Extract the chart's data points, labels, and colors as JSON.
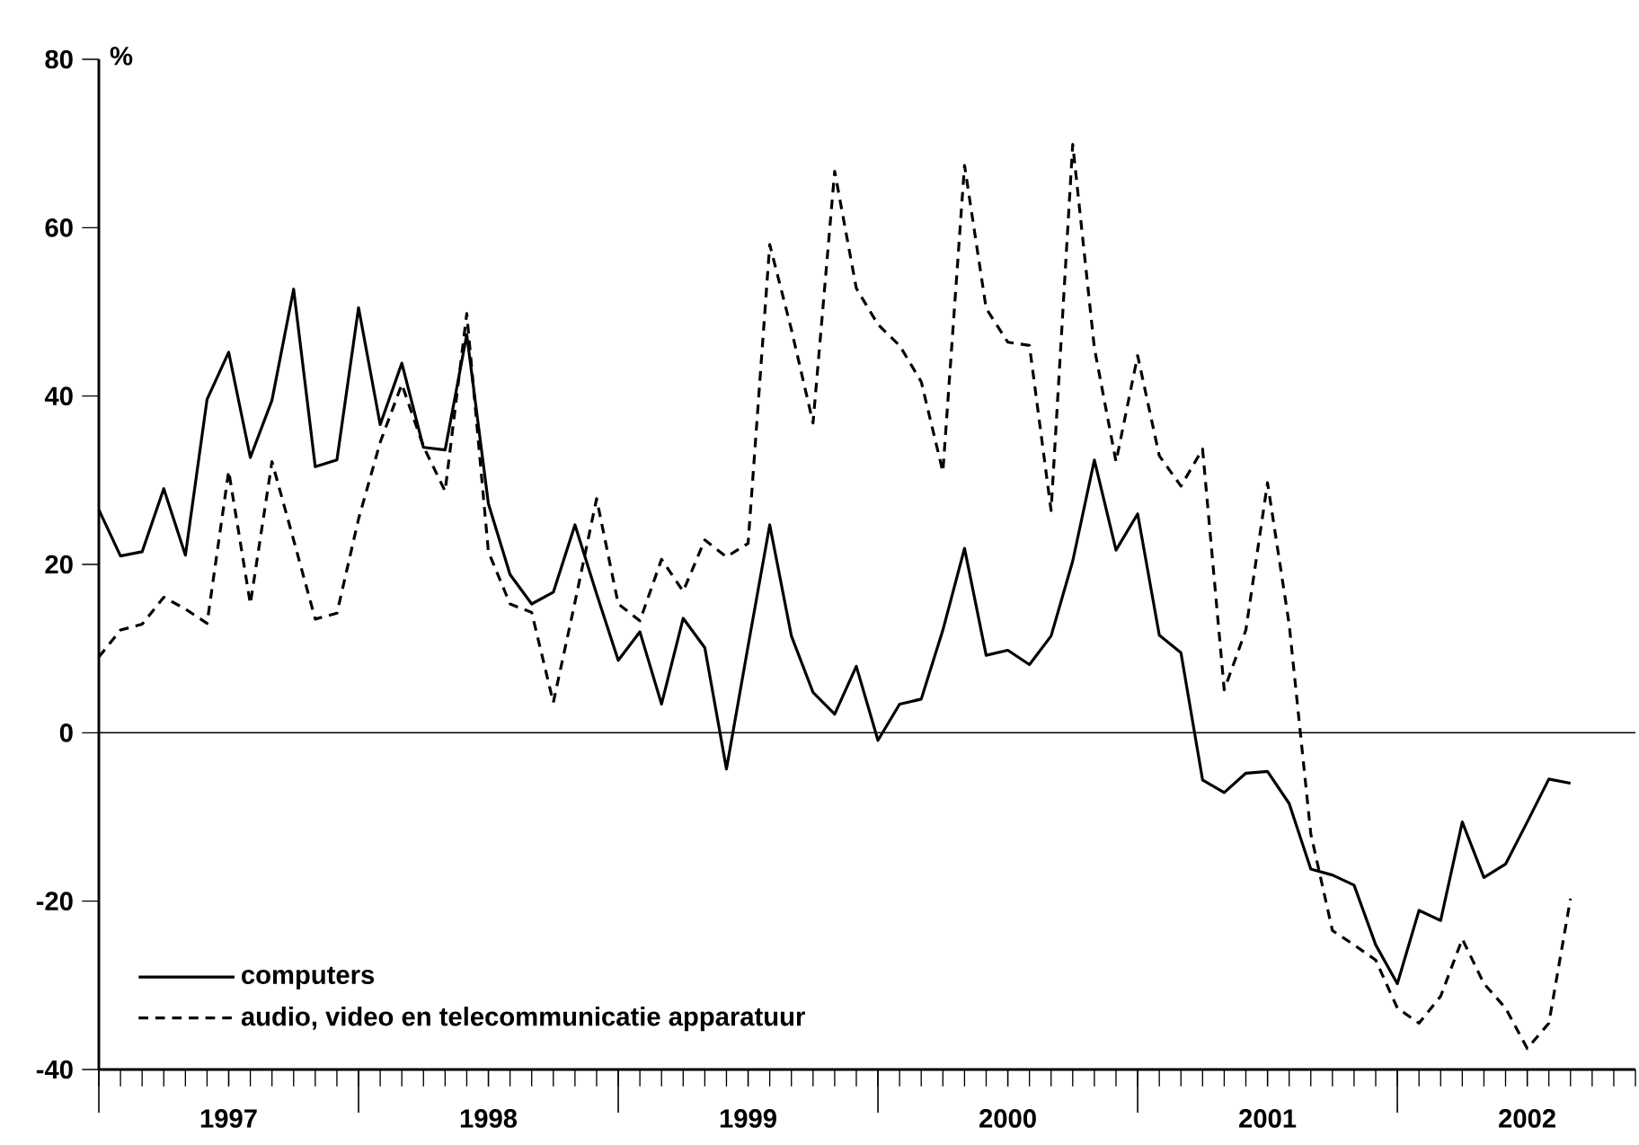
{
  "chart_data": {
    "type": "line",
    "ylabel": "%",
    "x": [
      "1997-01",
      "1997-02",
      "1997-03",
      "1997-04",
      "1997-05",
      "1997-06",
      "1997-07",
      "1997-08",
      "1997-09",
      "1997-10",
      "1997-11",
      "1997-12",
      "1998-01",
      "1998-02",
      "1998-03",
      "1998-04",
      "1998-05",
      "1998-06",
      "1998-07",
      "1998-08",
      "1998-09",
      "1998-10",
      "1998-11",
      "1998-12",
      "1999-01",
      "1999-02",
      "1999-03",
      "1999-04",
      "1999-05",
      "1999-06",
      "1999-07",
      "1999-08",
      "1999-09",
      "1999-10",
      "1999-11",
      "1999-12",
      "2000-01",
      "2000-02",
      "2000-03",
      "2000-04",
      "2000-05",
      "2000-06",
      "2000-07",
      "2000-08",
      "2000-09",
      "2000-10",
      "2000-11",
      "2000-12",
      "2001-01",
      "2001-02",
      "2001-03",
      "2001-04",
      "2001-05",
      "2001-06",
      "2001-07",
      "2001-08",
      "2001-09",
      "2001-10",
      "2001-11",
      "2001-12",
      "2002-01",
      "2002-02",
      "2002-03",
      "2002-04",
      "2002-05",
      "2002-06",
      "2002-07",
      "2002-08",
      "2002-09"
    ],
    "series": [
      {
        "name": "computers",
        "color": "#000000",
        "line_style": "solid",
        "values": [
          26.5,
          21.0,
          21.5,
          29.0,
          21.1,
          39.6,
          45.2,
          32.7,
          39.5,
          52.7,
          31.6,
          32.4,
          50.5,
          36.6,
          43.9,
          33.9,
          33.6,
          47.3,
          27.2,
          18.8,
          15.3,
          16.7,
          24.7,
          16.5,
          8.6,
          12.0,
          3.4,
          13.6,
          10.1,
          -4.3,
          10.3,
          24.7,
          11.5,
          4.8,
          2.2,
          7.9,
          -0.9,
          3.4,
          4.0,
          12.2,
          21.9,
          9.2,
          9.8,
          8.1,
          11.5,
          20.4,
          32.4,
          21.7,
          26.0,
          11.6,
          9.5,
          -5.6,
          -7.1,
          -4.8,
          -4.6,
          -8.4,
          -16.2,
          -16.9,
          -18.1,
          -25.2,
          -29.8,
          -21.1,
          -22.3,
          -10.6,
          -17.2,
          -15.6,
          -10.6,
          -5.5,
          -6.0
        ]
      },
      {
        "name": "audio, video en telecommunicatie apparatuur",
        "color": "#000000",
        "line_style": "dashed",
        "values": [
          9.0,
          12.2,
          12.9,
          16.1,
          14.7,
          13.0,
          31.1,
          15.3,
          32.2,
          22.9,
          13.5,
          14.2,
          25.4,
          34.5,
          41.4,
          34.0,
          28.7,
          49.8,
          21.5,
          15.3,
          14.3,
          3.6,
          15.5,
          27.8,
          15.3,
          13.3,
          20.6,
          16.8,
          22.9,
          20.9,
          22.5,
          58.0,
          47.9,
          36.8,
          66.7,
          52.8,
          48.5,
          46.0,
          41.7,
          31.0,
          67.4,
          50.4,
          46.4,
          46.0,
          26.4,
          69.9,
          45.7,
          32.2,
          44.8,
          32.9,
          29.3,
          33.7,
          5.1,
          12.2,
          29.7,
          12.9,
          -12.0,
          -23.5,
          -25.2,
          -27.0,
          -32.7,
          -34.5,
          -31.3,
          -24.5,
          -29.8,
          -32.7,
          -37.5,
          -34.5,
          -19.7
        ]
      }
    ],
    "xlim": [
      "1997-01",
      "2002-12"
    ],
    "xticks": [
      {
        "value": "1997-01",
        "label": null
      },
      {
        "value": "1997-07",
        "label": "1997"
      },
      {
        "value": "1998-01",
        "label": null
      },
      {
        "value": "1998-07",
        "label": "1998"
      },
      {
        "value": "1999-01",
        "label": null
      },
      {
        "value": "1999-07",
        "label": "1999"
      },
      {
        "value": "2000-01",
        "label": null
      },
      {
        "value": "2000-07",
        "label": "2000"
      },
      {
        "value": "2001-01",
        "label": null
      },
      {
        "value": "2001-07",
        "label": "2001"
      },
      {
        "value": "2002-01",
        "label": null
      },
      {
        "value": "2002-07",
        "label": "2002"
      }
    ],
    "ylim": [
      -40,
      80
    ],
    "yticks": [
      -40,
      -20,
      0,
      20,
      40,
      60,
      80
    ],
    "ref_lines": [
      {
        "axis": "y",
        "value": 0
      }
    ],
    "grid": false,
    "legend": "bottom left",
    "marker": "none"
  }
}
